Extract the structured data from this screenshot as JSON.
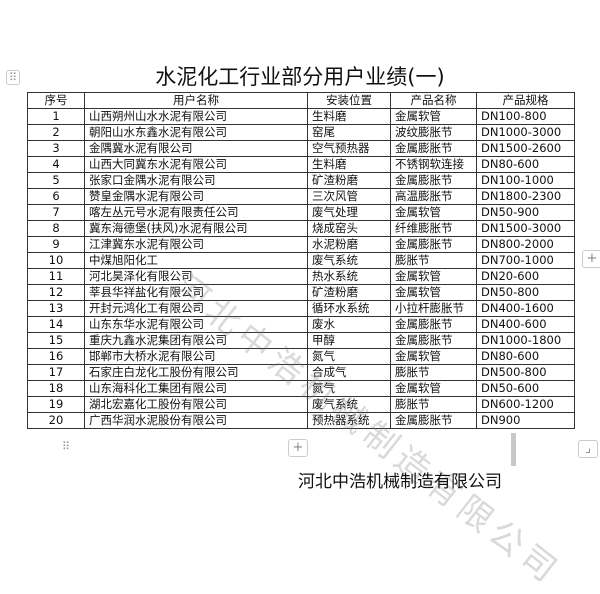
{
  "title": "水泥化工行业部分用户业绩(一)",
  "headers": [
    "序号",
    "用户名称",
    "安装位置",
    "产品名称",
    "产品规格"
  ],
  "rows": [
    [
      "1",
      "山西朔州山水水泥有限公司",
      "生料磨",
      "金属软管",
      "DN100-800"
    ],
    [
      "2",
      "朝阳山水东鑫水泥有限公司",
      "窑尾",
      "波纹膨胀节",
      "DN1000-3000"
    ],
    [
      "3",
      "金隅冀水泥有限公司",
      "空气预热器",
      "金属膨胀节",
      "DN1500-2600"
    ],
    [
      "4",
      "山西大同冀东水泥有限公司",
      "生料磨",
      "不锈钢软连接",
      "DN80-600"
    ],
    [
      "5",
      "张家口金隅水泥有限公司",
      "矿渣粉磨",
      "金属膨胀节",
      "DN100-1000"
    ],
    [
      "6",
      "赞皇金隅水泥有限公司",
      "三次风管",
      "高温膨胀节",
      "DN1800-2300"
    ],
    [
      "7",
      "喀左丛元号水泥有限责任公司",
      "废气处理",
      "金属软管",
      "DN50-900"
    ],
    [
      "8",
      "冀东海德堡(扶风)水泥有限公司",
      "烧成窑头",
      "纤维膨胀节",
      "DN1500-3000"
    ],
    [
      "9",
      "江津冀东水泥有限公司",
      "水泥粉磨",
      "金属膨胀节",
      "DN800-2000"
    ],
    [
      "10",
      "中煤旭阳化工",
      "废气系统",
      "膨胀节",
      "DN700-1000"
    ],
    [
      "11",
      "河北昊泽化有限公司",
      "热水系统",
      "金属软管",
      "DN20-600"
    ],
    [
      "12",
      "莘县华祥盐化有限公司",
      "矿渣粉磨",
      "金属软管",
      "DN50-800"
    ],
    [
      "13",
      "开封元鸿化工有限公司",
      "循环水系统",
      "小拉杆膨胀节",
      "DN400-1600"
    ],
    [
      "14",
      "山东东华水泥有限公司",
      "废水",
      "金属膨胀节",
      "DN400-600"
    ],
    [
      "15",
      "重庆九鑫水泥集团有限公司",
      "甲醇",
      "金属膨胀节",
      "DN1000-1800"
    ],
    [
      "16",
      "邯郸市大桥水泥有限公司",
      "氮气",
      "金属软管",
      "DN80-600"
    ],
    [
      "17",
      "石家庄白龙化工股份有限公司",
      "合成气",
      "膨胀节",
      "DN500-800"
    ],
    [
      "18",
      "山东海科化工集团有限公司",
      "氮气",
      "金属软管",
      "DN50-600"
    ],
    [
      "19",
      "湖北宏嘉化工股份有限公司",
      "废气系统",
      "膨胀节",
      "DN600-1200"
    ],
    [
      "20",
      "广西华润水泥股份有限公司",
      "预热器系统",
      "金属膨胀节",
      "DN900"
    ]
  ],
  "watermark": "河北中浩机械制造有限公司",
  "footer": "河北中浩机械制造有限公司",
  "controls": {
    "plus": "+",
    "handle": "⠿",
    "resize": "⌟"
  }
}
